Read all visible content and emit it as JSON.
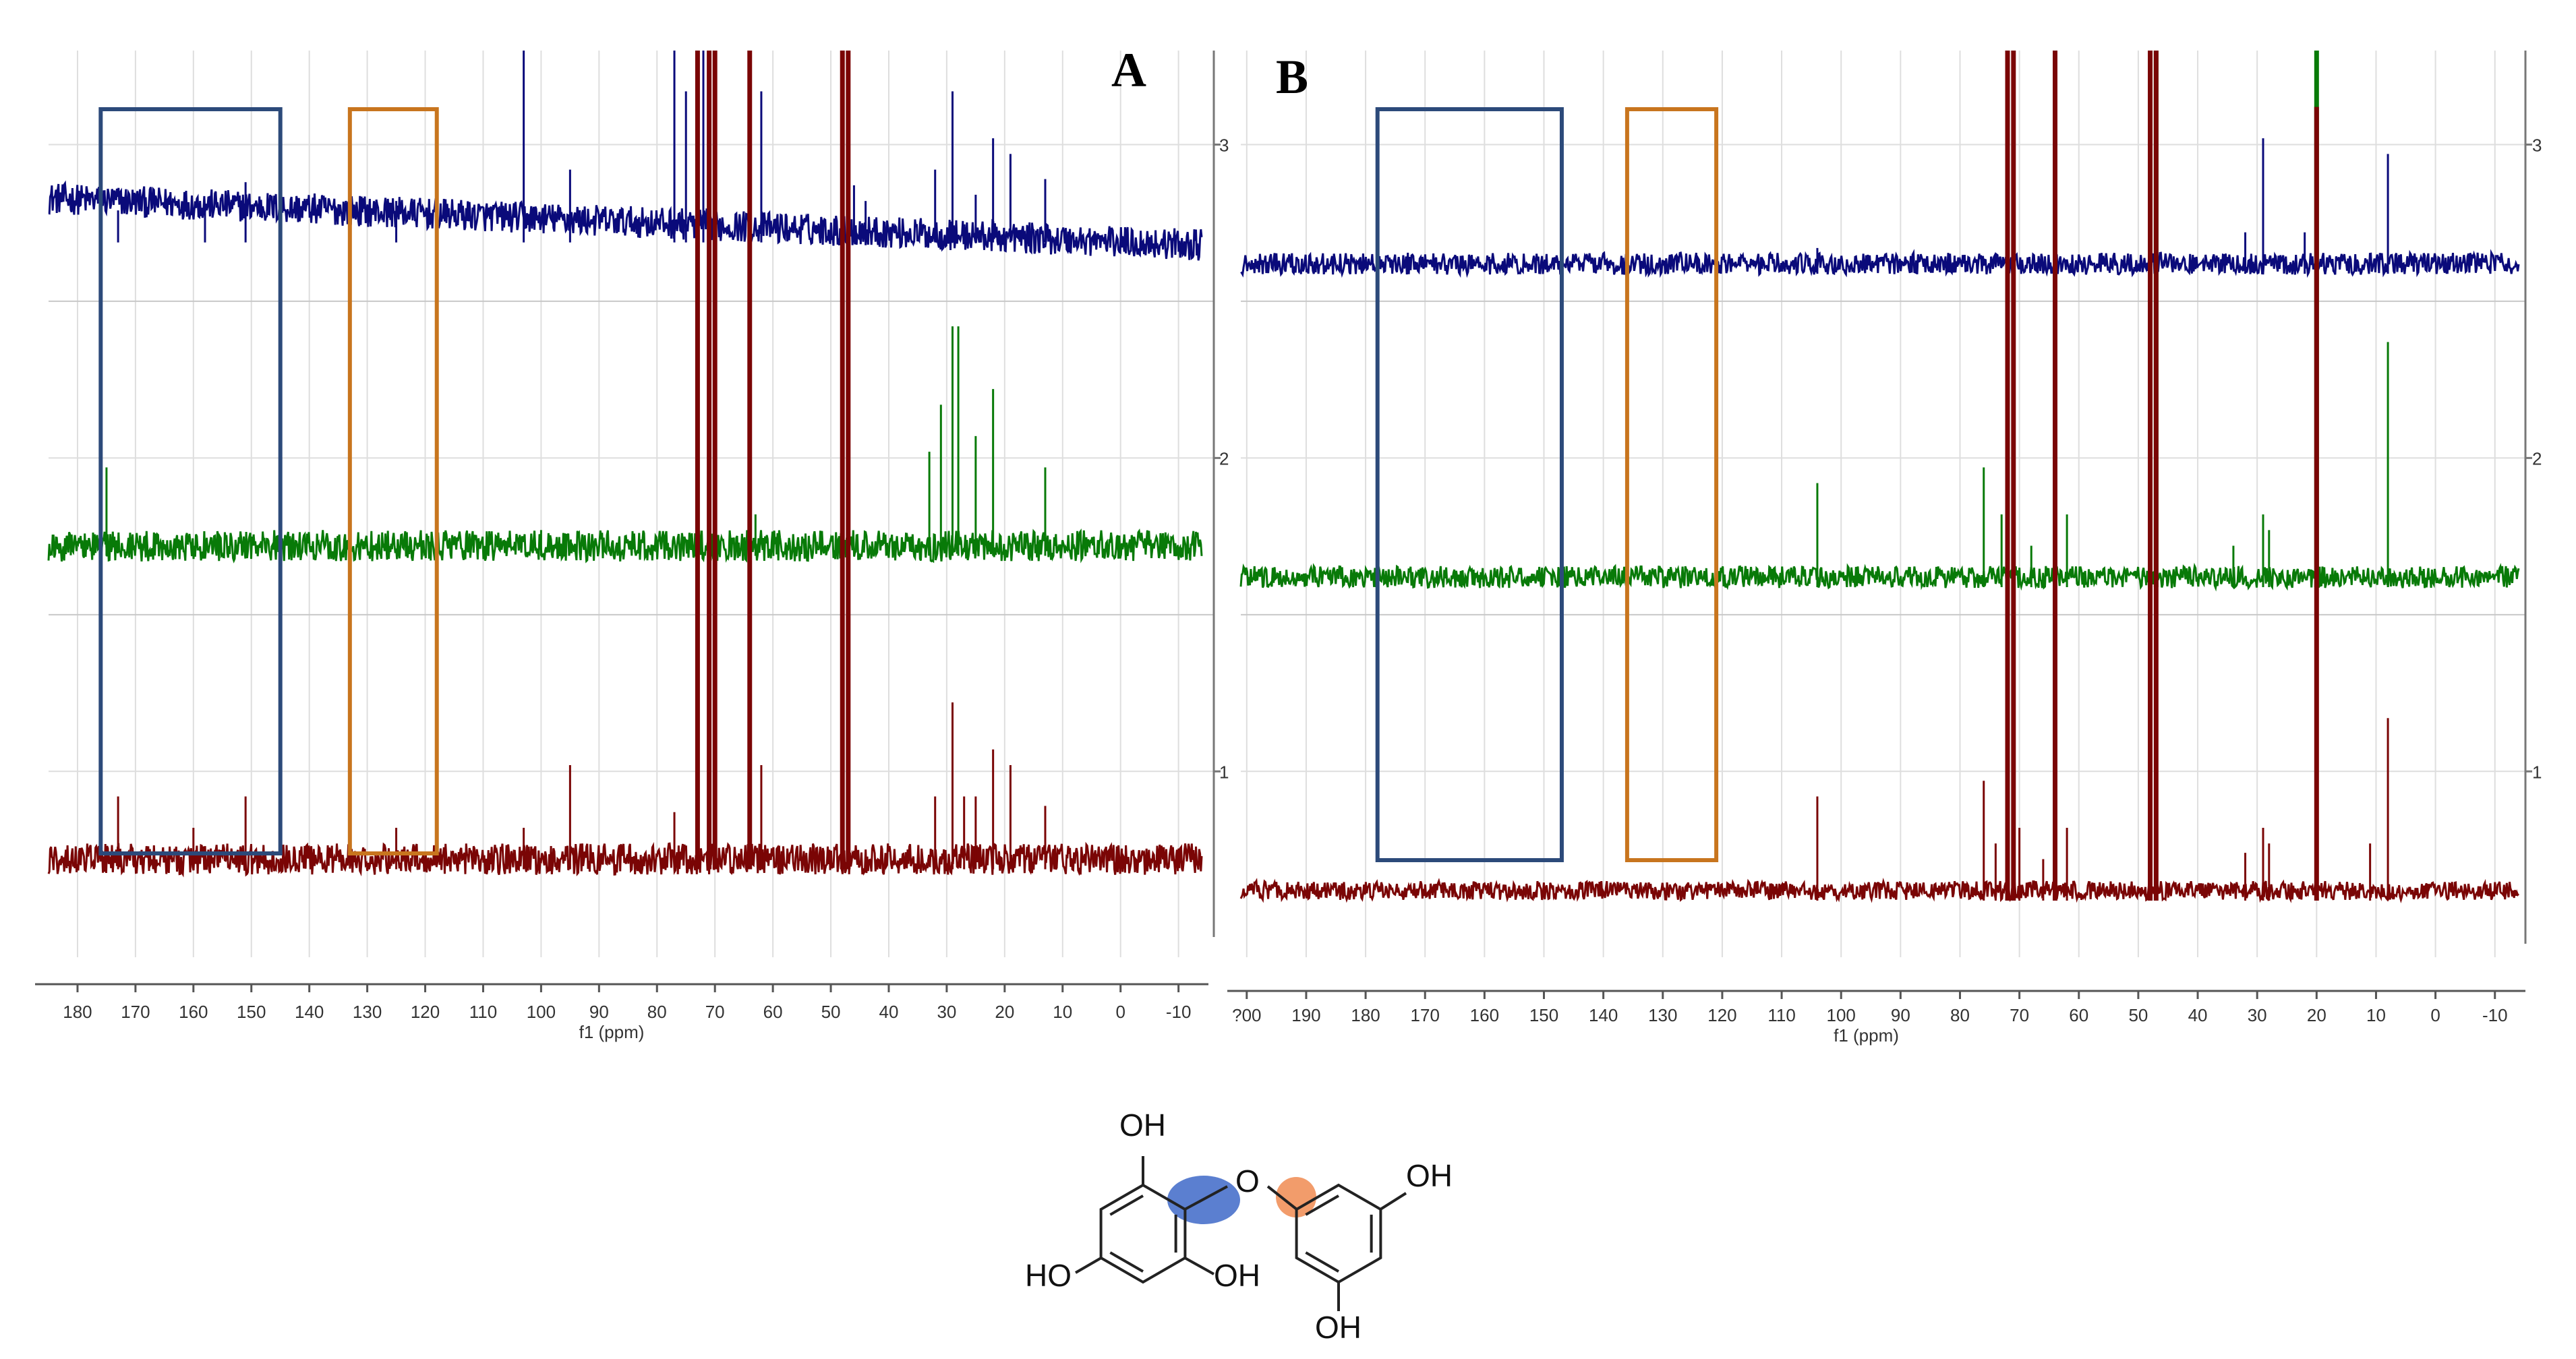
{
  "chart_data": [
    {
      "type": "line",
      "panel_label": "A",
      "xlabel": "f1 (ppm)",
      "xlim": [
        185,
        -14
      ],
      "x_ticks": [
        180,
        170,
        160,
        150,
        140,
        130,
        120,
        110,
        100,
        90,
        80,
        70,
        60,
        50,
        40,
        30,
        20,
        10,
        0,
        -10
      ],
      "ylim": [
        0.45,
        3.3
      ],
      "y_ticks": [
        1,
        2,
        3
      ],
      "grid": true,
      "series": [
        {
          "color": "#0a0a7a",
          "baseline": 2.72,
          "noise": 0.05,
          "peaks": [
            [
              173,
              0.07
            ],
            [
              158,
              0.09
            ],
            [
              151,
              0.16
            ],
            [
              125,
              0.1
            ],
            [
              103,
              0.7
            ],
            [
              95,
              0.2
            ],
            [
              77,
              0.7
            ],
            [
              75,
              0.45
            ],
            [
              72,
              0.75
            ],
            [
              70,
              0.75
            ],
            [
              62,
              0.45
            ],
            [
              46,
              0.15
            ],
            [
              44,
              0.1
            ],
            [
              32,
              0.2
            ],
            [
              29,
              0.45
            ],
            [
              25,
              0.12
            ],
            [
              22,
              0.3
            ],
            [
              19,
              0.25
            ],
            [
              13,
              0.17
            ]
          ]
        },
        {
          "color": "#087a08",
          "baseline": 1.72,
          "noise": 0.05,
          "peaks": [
            [
              175,
              0.25
            ],
            [
              100,
              0.05
            ],
            [
              63,
              0.1
            ],
            [
              33,
              0.3
            ],
            [
              31,
              0.45
            ],
            [
              29,
              0.7
            ],
            [
              28,
              0.7
            ],
            [
              25,
              0.35
            ],
            [
              22,
              0.5
            ],
            [
              13,
              0.25
            ]
          ]
        },
        {
          "color": "#7a0505",
          "baseline": 0.72,
          "noise": 0.05,
          "peaks": [
            [
              173,
              0.2
            ],
            [
              160,
              0.1
            ],
            [
              151,
              0.2
            ],
            [
              125,
              0.1
            ],
            [
              103,
              0.1
            ],
            [
              95,
              0.3
            ],
            [
              77,
              0.15
            ],
            [
              73,
              3.0
            ],
            [
              71,
              3.0
            ],
            [
              70,
              3.0
            ],
            [
              64,
              3.0
            ],
            [
              62,
              0.3
            ],
            [
              48,
              3.0
            ],
            [
              47,
              3.0
            ],
            [
              32,
              0.2
            ],
            [
              29,
              0.5
            ],
            [
              27,
              0.2
            ],
            [
              25,
              0.2
            ],
            [
              22,
              0.35
            ],
            [
              19,
              0.3
            ],
            [
              13,
              0.17
            ]
          ]
        }
      ],
      "highlight_boxes": [
        {
          "color": "#2c4a7a",
          "x_from": 176,
          "x_to": 145
        },
        {
          "color": "#c8751e",
          "x_from": 133,
          "x_to": 118
        }
      ]
    },
    {
      "type": "line",
      "panel_label": "B",
      "xlabel": "f1 (ppm)",
      "xlim": [
        201,
        -14
      ],
      "x_ticks": [
        200,
        190,
        180,
        170,
        160,
        150,
        140,
        130,
        120,
        110,
        100,
        90,
        80,
        70,
        60,
        50,
        40,
        30,
        20,
        10,
        0,
        -10
      ],
      "tick_labels": [
        "?00",
        "190",
        "180",
        "170",
        "160",
        "150",
        "140",
        "130",
        "120",
        "110",
        "100",
        "90",
        "80",
        "70",
        "60",
        "50",
        "40",
        "30",
        "20",
        "10",
        "0",
        "-10"
      ],
      "ylim": [
        0.45,
        3.3
      ],
      "y_ticks": [
        1,
        2,
        3
      ],
      "grid": true,
      "series": [
        {
          "color": "#0a0a7a",
          "baseline": 2.62,
          "noise": 0.035,
          "peaks": [
            [
              104,
              0.05
            ],
            [
              72,
              0.05
            ],
            [
              48,
              0.3
            ],
            [
              32,
              0.1
            ],
            [
              29,
              0.4
            ],
            [
              22,
              0.1
            ],
            [
              20,
              0.2
            ],
            [
              8,
              0.35
            ]
          ]
        },
        {
          "color": "#087a08",
          "baseline": 1.62,
          "noise": 0.035,
          "peaks": [
            [
              104,
              0.3
            ],
            [
              76,
              0.35
            ],
            [
              73,
              0.2
            ],
            [
              72,
              2.5
            ],
            [
              71,
              0.25
            ],
            [
              68,
              0.1
            ],
            [
              64,
              2.0
            ],
            [
              62,
              0.2
            ],
            [
              48,
              0.5
            ],
            [
              47,
              2.2
            ],
            [
              34,
              0.1
            ],
            [
              29,
              0.2
            ],
            [
              28,
              0.15
            ],
            [
              20,
              3.0
            ],
            [
              8,
              0.75
            ]
          ]
        },
        {
          "color": "#7a0505",
          "baseline": 0.62,
          "noise": 0.03,
          "peaks": [
            [
              104,
              0.3
            ],
            [
              76,
              0.35
            ],
            [
              74,
              0.15
            ],
            [
              72,
              3.0
            ],
            [
              71,
              3.0
            ],
            [
              70,
              0.2
            ],
            [
              66,
              0.1
            ],
            [
              64,
              3.0
            ],
            [
              62,
              0.2
            ],
            [
              48,
              3.0
            ],
            [
              47,
              3.0
            ],
            [
              32,
              0.12
            ],
            [
              29,
              0.2
            ],
            [
              28,
              0.15
            ],
            [
              20,
              2.5
            ],
            [
              11,
              0.15
            ],
            [
              8,
              0.55
            ]
          ]
        }
      ],
      "highlight_boxes": [
        {
          "color": "#2c4a7a",
          "x_from": 178,
          "x_to": 147
        },
        {
          "color": "#c8751e",
          "x_from": 136,
          "x_to": 121
        }
      ]
    }
  ],
  "structure": {
    "labels": [
      "OH",
      "O",
      "OH",
      "HO",
      "OH",
      "OH"
    ],
    "colors": {
      "bond": "#222222",
      "blue_highlight": "#5b7fd0",
      "orange_highlight": "#f29c6b"
    }
  }
}
